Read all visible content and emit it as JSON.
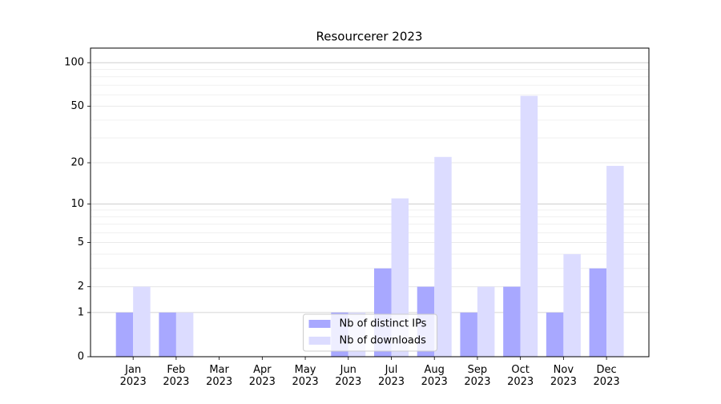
{
  "chart_data": {
    "type": "bar",
    "title": "Resourcerer 2023",
    "categories": [
      "Jan\n2023",
      "Feb\n2023",
      "Mar\n2023",
      "Apr\n2023",
      "May\n2023",
      "Jun\n2023",
      "Jul\n2023",
      "Aug\n2023",
      "Sep\n2023",
      "Oct\n2023",
      "Nov\n2023",
      "Dec\n2023"
    ],
    "series": [
      {
        "name": "Nb of distinct IPs",
        "color": "#a8a8ff",
        "values": [
          1,
          1,
          0,
          0,
          0,
          1,
          3,
          2,
          1,
          2,
          1,
          3
        ]
      },
      {
        "name": "Nb of downloads",
        "color": "#dcdcff",
        "values": [
          2,
          1,
          0,
          0,
          0,
          1,
          11,
          22,
          2,
          59,
          4,
          19
        ]
      }
    ],
    "yscale": "log1p",
    "ylim": [
      0,
      126
    ],
    "yticks": [
      0,
      1,
      2,
      5,
      10,
      20,
      50,
      100
    ],
    "grid": true,
    "legend": "lower center"
  }
}
